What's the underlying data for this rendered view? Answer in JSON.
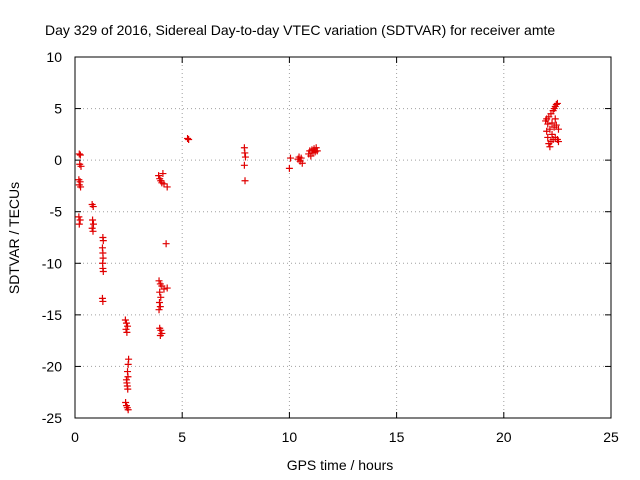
{
  "chart_data": {
    "type": "scatter",
    "title": "Day 329 of 2016, Sidereal Day-to-day VTEC variation (SDTVAR) for receiver amte",
    "xlabel": "GPS time / hours",
    "ylabel": "SDTVAR / TECUs",
    "xlim": [
      0,
      25
    ],
    "ylim": [
      -25,
      10
    ],
    "xticks": [
      "0",
      "5",
      "10",
      "15",
      "20",
      "25"
    ],
    "yticks": [
      "-25",
      "-20",
      "-15",
      "-10",
      "-5",
      "0",
      "5",
      "10"
    ],
    "grid": true,
    "marker": "plus",
    "color": "#e00000",
    "series": [
      {
        "name": "SDTVAR",
        "points": [
          [
            0.2,
            0.6
          ],
          [
            0.25,
            0.5
          ],
          [
            0.22,
            -0.4
          ],
          [
            0.28,
            -0.6
          ],
          [
            0.18,
            -1.9
          ],
          [
            0.24,
            -2.1
          ],
          [
            0.2,
            -2.4
          ],
          [
            0.26,
            -2.6
          ],
          [
            0.18,
            -5.5
          ],
          [
            0.24,
            -5.8
          ],
          [
            0.2,
            -6.2
          ],
          [
            0.8,
            -4.3
          ],
          [
            0.85,
            -4.5
          ],
          [
            0.82,
            -5.8
          ],
          [
            0.86,
            -6.2
          ],
          [
            0.8,
            -6.6
          ],
          [
            0.84,
            -6.9
          ],
          [
            1.3,
            -7.5
          ],
          [
            1.32,
            -7.8
          ],
          [
            1.28,
            -8.5
          ],
          [
            1.3,
            -9.0
          ],
          [
            1.31,
            -9.5
          ],
          [
            1.29,
            -10.0
          ],
          [
            1.3,
            -10.5
          ],
          [
            1.32,
            -10.8
          ],
          [
            1.28,
            -13.4
          ],
          [
            1.3,
            -13.7
          ],
          [
            2.35,
            -15.5
          ],
          [
            2.4,
            -15.8
          ],
          [
            2.45,
            -16.1
          ],
          [
            2.38,
            -16.4
          ],
          [
            2.42,
            -16.7
          ],
          [
            2.5,
            -19.3
          ],
          [
            2.48,
            -19.8
          ],
          [
            2.45,
            -20.5
          ],
          [
            2.47,
            -21.0
          ],
          [
            2.4,
            -21.3
          ],
          [
            2.42,
            -21.6
          ],
          [
            2.44,
            -21.9
          ],
          [
            2.46,
            -22.2
          ],
          [
            2.36,
            -23.5
          ],
          [
            2.4,
            -23.8
          ],
          [
            2.44,
            -24.0
          ],
          [
            2.48,
            -24.2
          ],
          [
            3.9,
            -1.5
          ],
          [
            3.95,
            -1.8
          ],
          [
            4.0,
            -2.0
          ],
          [
            4.05,
            -2.2
          ],
          [
            4.1,
            -1.3
          ],
          [
            4.15,
            -2.3
          ],
          [
            4.3,
            -2.6
          ],
          [
            4.25,
            -8.1
          ],
          [
            3.92,
            -11.7
          ],
          [
            3.98,
            -12.0
          ],
          [
            4.05,
            -12.2
          ],
          [
            4.15,
            -12.5
          ],
          [
            4.3,
            -12.4
          ],
          [
            3.95,
            -12.8
          ],
          [
            4.0,
            -13.3
          ],
          [
            3.94,
            -13.8
          ],
          [
            3.98,
            -14.2
          ],
          [
            3.92,
            -14.5
          ],
          [
            3.95,
            -16.3
          ],
          [
            4.0,
            -16.5
          ],
          [
            4.05,
            -16.8
          ],
          [
            3.98,
            -17.0
          ],
          [
            5.25,
            2.1
          ],
          [
            5.3,
            2.0
          ],
          [
            7.9,
            1.2
          ],
          [
            7.92,
            0.7
          ],
          [
            7.95,
            0.3
          ],
          [
            7.9,
            -0.5
          ],
          [
            7.93,
            -2.0
          ],
          [
            10.05,
            0.2
          ],
          [
            10.0,
            -0.8
          ],
          [
            10.4,
            0.1
          ],
          [
            10.5,
            -0.1
          ],
          [
            10.55,
            0.2
          ],
          [
            10.6,
            -0.3
          ],
          [
            10.45,
            0.3
          ],
          [
            10.9,
            0.6
          ],
          [
            10.95,
            0.9
          ],
          [
            11.0,
            0.4
          ],
          [
            11.05,
            1.0
          ],
          [
            11.1,
            0.7
          ],
          [
            11.15,
            1.1
          ],
          [
            11.2,
            0.8
          ],
          [
            11.25,
            1.2
          ],
          [
            11.3,
            0.9
          ],
          [
            21.95,
            3.8
          ],
          [
            22.0,
            4.0
          ],
          [
            22.05,
            3.5
          ],
          [
            22.1,
            4.2
          ],
          [
            22.15,
            3.0
          ],
          [
            22.2,
            4.5
          ],
          [
            22.25,
            2.5
          ],
          [
            22.3,
            4.8
          ],
          [
            22.35,
            5.0
          ],
          [
            22.4,
            5.2
          ],
          [
            22.45,
            5.4
          ],
          [
            22.5,
            5.5
          ],
          [
            22.05,
            2.2
          ],
          [
            22.1,
            1.6
          ],
          [
            22.15,
            1.3
          ],
          [
            22.2,
            1.8
          ],
          [
            22.3,
            2.0
          ],
          [
            22.4,
            2.2
          ],
          [
            22.5,
            2.0
          ],
          [
            22.55,
            1.8
          ],
          [
            22.35,
            3.2
          ],
          [
            22.45,
            3.4
          ],
          [
            22.55,
            3.0
          ],
          [
            22.0,
            2.8
          ],
          [
            22.25,
            3.6
          ],
          [
            22.4,
            4.0
          ]
        ]
      }
    ]
  }
}
